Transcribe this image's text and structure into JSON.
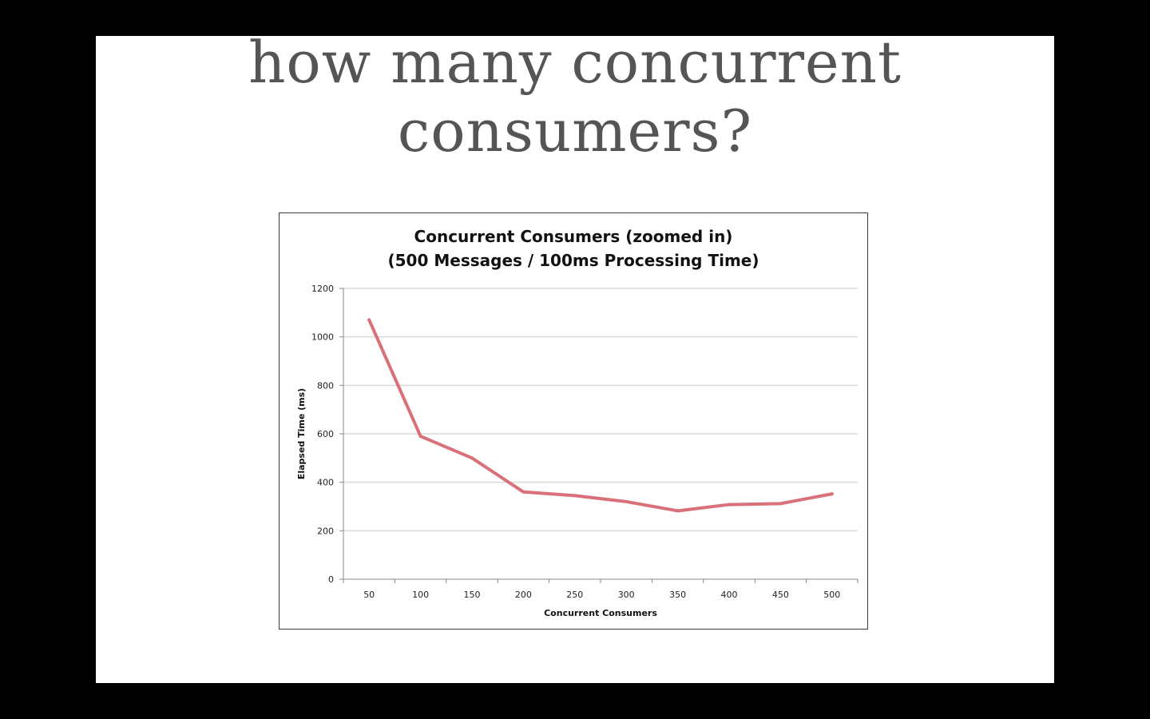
{
  "slide": {
    "title_line1": "how many concurrent",
    "title_line2": "consumers?"
  },
  "colors": {
    "background": "#000000",
    "slide": "#ffffff",
    "title_text": "#555555",
    "series_line": "#d9707a",
    "gridline": "#d9d9d9"
  },
  "chart_data": {
    "type": "line",
    "title_line1": "Concurrent Consumers (zoomed in)",
    "title_line2": "(500 Messages / 100ms Processing Time)",
    "xlabel": "Concurrent Consumers",
    "ylabel": "Elapsed Time (ms)",
    "categories": [
      "50",
      "100",
      "150",
      "200",
      "250",
      "300",
      "350",
      "400",
      "450",
      "500"
    ],
    "values": [
      1070,
      590,
      500,
      360,
      345,
      320,
      282,
      308,
      312,
      352
    ],
    "y_ticks": [
      "0",
      "200",
      "400",
      "600",
      "800",
      "1000",
      "1200"
    ],
    "ylim": [
      0,
      1200
    ],
    "grid": true,
    "legend": "none"
  }
}
